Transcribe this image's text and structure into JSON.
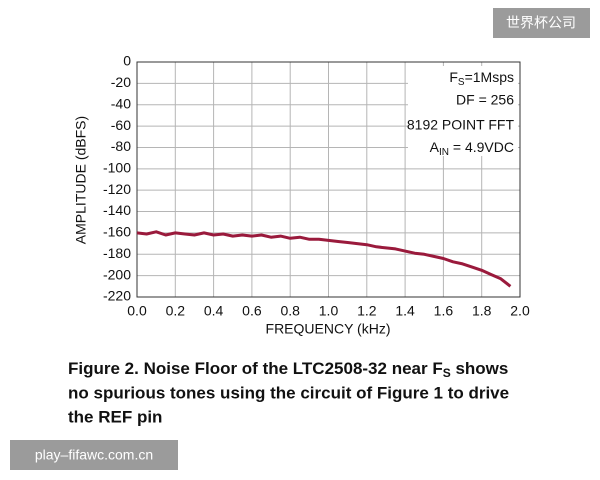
{
  "chart_data": {
    "type": "line",
    "xlabel": "FREQUENCY (kHz)",
    "ylabel": "AMPLITUDE (dBFS)",
    "annotations": {
      "fs": {
        "main": "F",
        "sub": "S",
        "rest": "=1Msps"
      },
      "df": "DF = 256",
      "fft": "8192 POINT FFT",
      "ain": {
        "main": "A",
        "sub": "IN",
        "rest": " = 4.9VDC"
      }
    },
    "x": [
      0,
      0.05,
      0.1,
      0.15,
      0.2,
      0.25,
      0.3,
      0.35,
      0.4,
      0.45,
      0.5,
      0.55,
      0.6,
      0.65,
      0.7,
      0.75,
      0.8,
      0.85,
      0.9,
      0.95,
      1.0,
      1.05,
      1.1,
      1.15,
      1.2,
      1.25,
      1.3,
      1.35,
      1.4,
      1.45,
      1.5,
      1.55,
      1.6,
      1.65,
      1.7,
      1.75,
      1.8,
      1.85,
      1.9,
      1.95
    ],
    "series": [
      {
        "color": "#9a1a3c",
        "values": [
          -160,
          -161,
          -159,
          -162,
          -160,
          -161,
          -162,
          -160,
          -162,
          -161,
          -163,
          -162,
          -163,
          -162,
          -164,
          -163,
          -165,
          -164,
          -166,
          -166,
          -167,
          -168,
          -169,
          -170,
          -171,
          -173,
          -174,
          -175,
          -177,
          -179,
          -180,
          -182,
          -184,
          -187,
          -189,
          -192,
          -195,
          -199,
          -203,
          -210
        ]
      }
    ],
    "xlim": [
      0,
      2
    ],
    "ylim": [
      -220,
      0
    ],
    "xticks": [
      {
        "value": 0,
        "label": "0.0"
      },
      0.2,
      0.4,
      0.6,
      0.8,
      {
        "value": 1,
        "label": "1.0"
      },
      1.2,
      1.4,
      1.6,
      1.8,
      {
        "value": 2,
        "label": "2.0"
      }
    ],
    "yticks": [
      0,
      -20,
      -40,
      -60,
      -80,
      -100,
      -120,
      -140,
      -160,
      -180,
      -200,
      -220
    ],
    "grid": true
  },
  "caption": {
    "line1": {
      "text": "Figure 2. Noise Floor of the LTC2508-32 near F",
      "sub": "S",
      "rest": " shows"
    },
    "line2": "no spurious tones using the circuit of Figure 1 to drive",
    "line3": "the REF pin"
  },
  "watermarks": {
    "top": "世界杯公司",
    "bottom": "play–fifawc.com.cn"
  }
}
